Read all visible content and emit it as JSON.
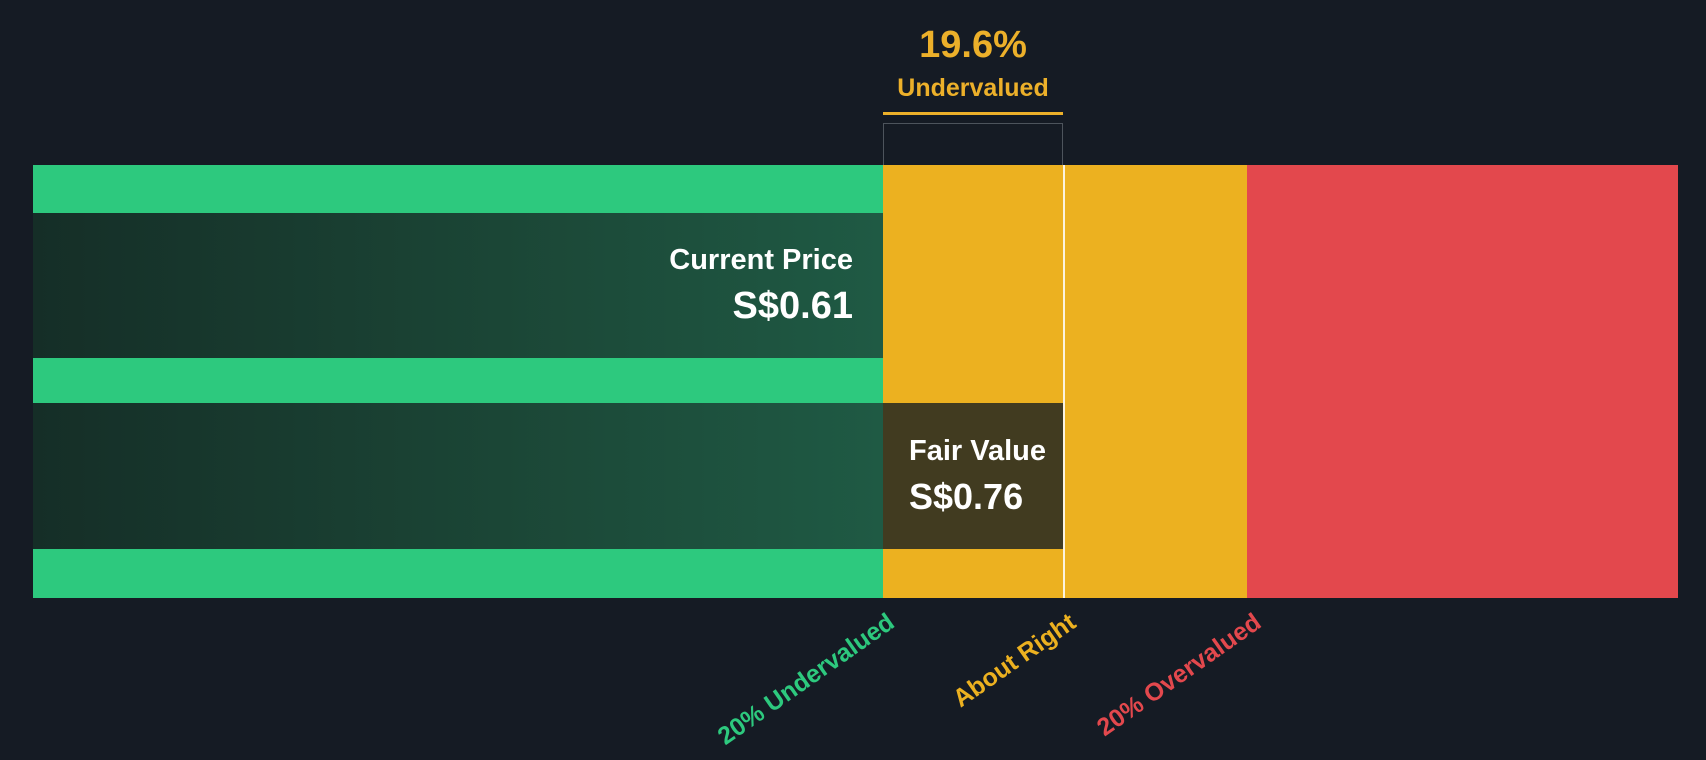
{
  "annotation": {
    "percent": "19.6%",
    "label": "Undervalued"
  },
  "current_price": {
    "label": "Current Price",
    "value": "S$0.61"
  },
  "fair_value": {
    "label": "Fair Value",
    "value": "S$0.76"
  },
  "axis": {
    "undervalued": "20% Undervalued",
    "about_right": "About Right",
    "overvalued": "20% Overvalued"
  },
  "colors": {
    "background": "#151b24",
    "undervalued_zone": "#2dc97e",
    "about_right_zone": "#ecb120",
    "overvalued_zone": "#e3484d",
    "current_price_bar": "#1b4636",
    "fair_value_box": "#413b20",
    "annotation_accent": "#ecb02a"
  },
  "chart_data": {
    "type": "bar",
    "currency": "S$",
    "series": [
      {
        "name": "Current Price",
        "value": 0.61,
        "display": "S$0.61"
      },
      {
        "name": "Fair Value",
        "value": 0.76,
        "display": "S$0.76"
      }
    ],
    "undervalued_percent": 19.6,
    "valuation_status": "Undervalued",
    "zones": [
      {
        "label": "20% Undervalued",
        "color": "#2dc97e"
      },
      {
        "label": "About Right",
        "color": "#ecb120"
      },
      {
        "label": "20% Overvalued",
        "color": "#e3484d"
      }
    ],
    "legend_position": "none",
    "grid": false
  }
}
